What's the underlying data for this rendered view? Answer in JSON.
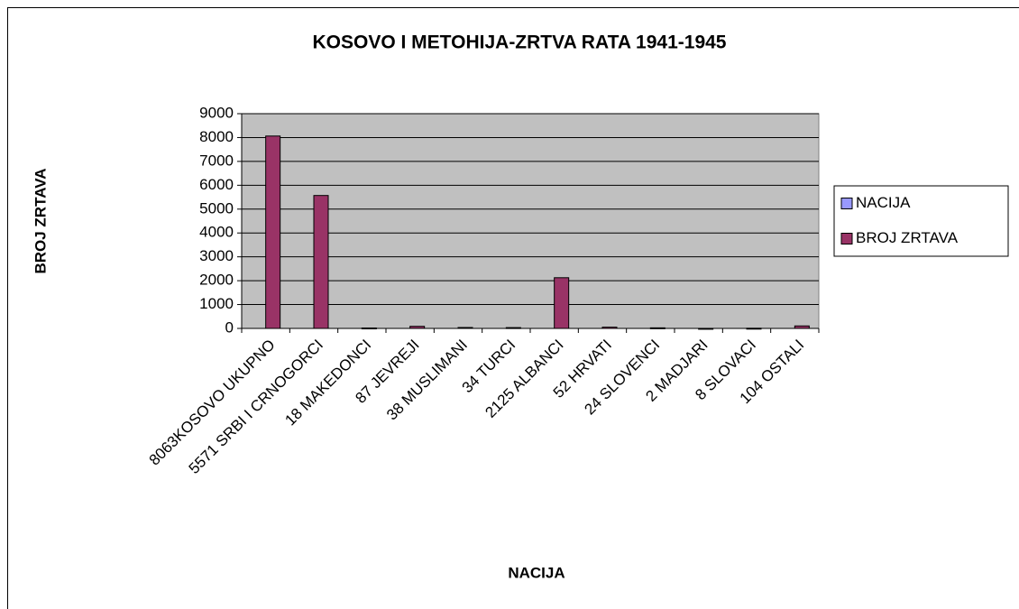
{
  "chart_data": {
    "type": "bar",
    "title": "KOSOVO I METOHIJA-ZRTVA RATA 1941-1945",
    "x_label": "NACIJA",
    "y_label": "BROJ ZRTAVA",
    "categories": [
      "8063KOSOVO UKUPNO",
      "5571 SRBI I CRNOGORCI",
      "18 MAKEDONCI",
      "87 JEVREJI",
      "38 MUSLIMANI",
      "34 TURCI",
      "2125 ALBANCI",
      "52 HRVATI",
      "24 SLOVENCI",
      "2 MADJARI",
      "8 SLOVACI",
      "104 OSTALI"
    ],
    "series": [
      {
        "name": "NACIJA",
        "color": "#9999ff",
        "values": [
          null,
          null,
          null,
          null,
          null,
          null,
          null,
          null,
          null,
          null,
          null,
          null
        ]
      },
      {
        "name": "BROJ ZRTAVA",
        "color": "#993366",
        "values": [
          8063,
          5571,
          18,
          87,
          38,
          34,
          2125,
          52,
          24,
          2,
          8,
          104
        ]
      }
    ],
    "ylim": [
      0,
      9000
    ],
    "yticks": [
      0,
      1000,
      2000,
      3000,
      4000,
      5000,
      6000,
      7000,
      8000,
      9000
    ],
    "grid": true,
    "legend": "right"
  }
}
